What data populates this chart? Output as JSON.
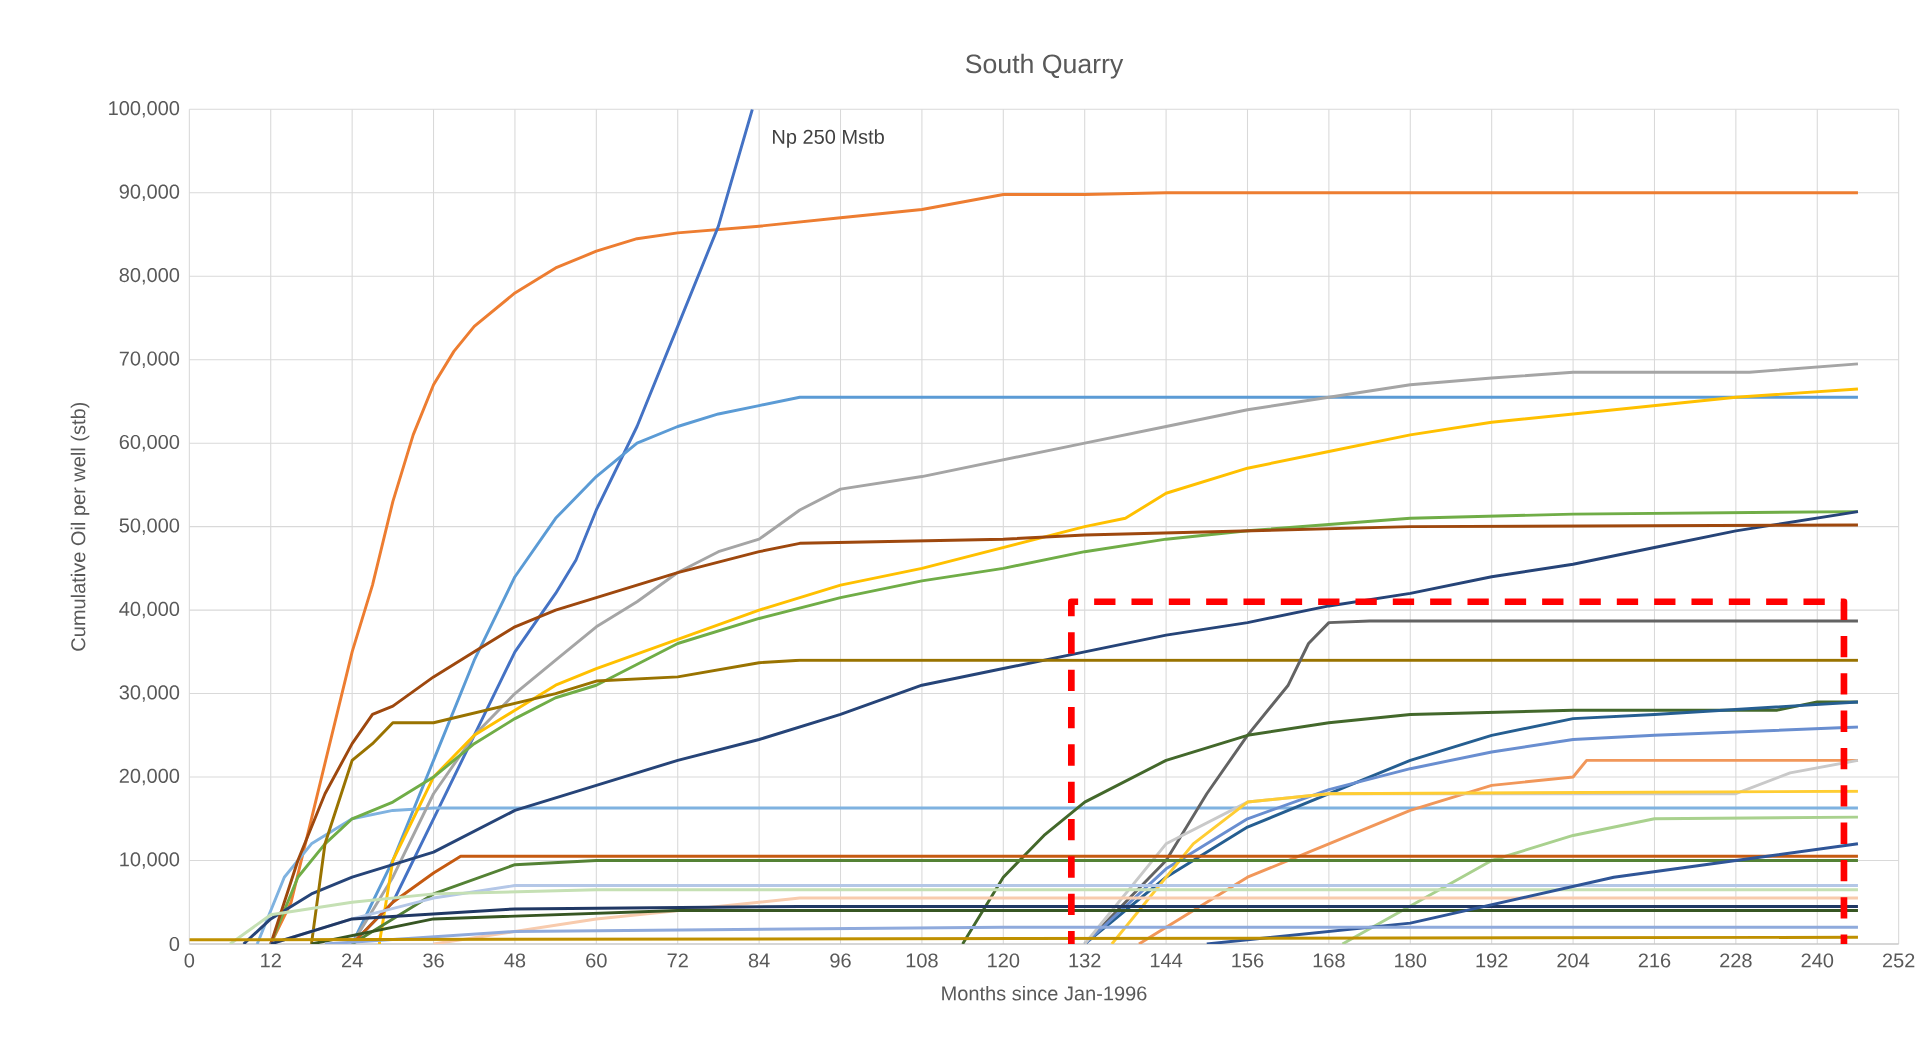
{
  "chart_data": {
    "type": "line",
    "title": "South Quarry",
    "xlabel": "Months since Jan-1996",
    "ylabel": "Cumulative Oil per well (stb)",
    "xlim": [
      0,
      252
    ],
    "ylim": [
      0,
      100000
    ],
    "xticks": [
      0,
      12,
      24,
      36,
      48,
      60,
      72,
      84,
      96,
      108,
      120,
      132,
      144,
      156,
      168,
      180,
      192,
      204,
      216,
      228,
      240,
      252
    ],
    "yticks": [
      {
        "value": 0,
        "label": "0"
      },
      {
        "value": 10000,
        "label": "10,000"
      },
      {
        "value": 20000,
        "label": "20,000"
      },
      {
        "value": 30000,
        "label": "30,000"
      },
      {
        "value": 40000,
        "label": "40,000"
      },
      {
        "value": 50000,
        "label": "50,000"
      },
      {
        "value": 60000,
        "label": "60,000"
      },
      {
        "value": 70000,
        "label": "70,000"
      },
      {
        "value": 80000,
        "label": "80,000"
      },
      {
        "value": 90000,
        "label": "90,000"
      },
      {
        "value": 100000,
        "label": "100,000"
      }
    ],
    "grid": true,
    "legend": false,
    "marker": "none",
    "line_style": "solid",
    "annotations": [
      "Np 250 Mstb"
    ],
    "series": [
      {
        "color": "#ed7d31",
        "x": [
          12,
          15,
          18,
          21,
          24,
          27,
          30,
          33,
          36,
          39,
          42,
          48,
          54,
          60,
          66,
          72,
          84,
          96,
          108,
          120,
          132,
          144,
          246
        ],
        "values": [
          0,
          5000,
          15000,
          25000,
          35000,
          43000,
          53000,
          61000,
          67000,
          71000,
          74000,
          78000,
          81000,
          83000,
          84500,
          85200,
          86000,
          87000,
          88000,
          89800,
          89800,
          90000,
          90000
        ]
      },
      {
        "color": "#4472c4",
        "x": [
          24,
          30,
          36,
          42,
          48,
          54,
          57,
          60,
          66,
          72,
          78,
          83
        ],
        "values": [
          0,
          5000,
          15000,
          25000,
          35000,
          42000,
          46000,
          52000,
          62000,
          74000,
          86000,
          100000
        ]
      },
      {
        "color": "#5b9bd5",
        "x": [
          24,
          30,
          36,
          42,
          48,
          54,
          60,
          66,
          72,
          78,
          84,
          90,
          246
        ],
        "values": [
          0,
          10000,
          22000,
          34000,
          44000,
          51000,
          56000,
          60000,
          62000,
          63500,
          64500,
          65500,
          65500
        ]
      },
      {
        "color": "#7fb2e0",
        "x": [
          10,
          14,
          18,
          24,
          30,
          36,
          246
        ],
        "values": [
          0,
          8000,
          12000,
          15000,
          16000,
          16300,
          16300
        ]
      },
      {
        "color": "#a5a5a5",
        "x": [
          24,
          30,
          36,
          42,
          48,
          54,
          60,
          66,
          72,
          78,
          84,
          90,
          96,
          108,
          120,
          132,
          144,
          156,
          168,
          180,
          192,
          204,
          230,
          246
        ],
        "values": [
          0,
          8000,
          18000,
          25000,
          30000,
          34000,
          38000,
          41000,
          44500,
          47000,
          48500,
          52000,
          54500,
          56000,
          58000,
          60000,
          62000,
          64000,
          65500,
          67000,
          67800,
          68500,
          68500,
          69500
        ]
      },
      {
        "color": "#ffc000",
        "x": [
          28,
          30,
          36,
          42,
          48,
          54,
          60,
          72,
          84,
          96,
          108,
          120,
          132,
          138,
          144,
          156,
          168,
          180,
          192,
          204,
          216,
          228,
          246
        ],
        "values": [
          0,
          10000,
          20000,
          25000,
          28000,
          31000,
          33000,
          36500,
          40000,
          43000,
          45000,
          47500,
          50000,
          51000,
          54000,
          57000,
          59000,
          61000,
          62500,
          63500,
          64500,
          65500,
          66500
        ]
      },
      {
        "color": "#70ad47",
        "x": [
          12,
          16,
          20,
          24,
          30,
          36,
          42,
          48,
          54,
          60,
          72,
          84,
          96,
          108,
          120,
          132,
          144,
          156,
          180,
          204,
          246
        ],
        "values": [
          0,
          8000,
          12000,
          15000,
          17000,
          20000,
          24000,
          27000,
          29500,
          31000,
          36000,
          39000,
          41500,
          43500,
          45000,
          47000,
          48500,
          49500,
          51000,
          51500,
          51800
        ]
      },
      {
        "color": "#264478",
        "x": [
          8,
          12,
          18,
          24,
          36,
          48,
          60,
          72,
          84,
          96,
          108,
          120,
          132,
          144,
          156,
          168,
          180,
          192,
          204,
          216,
          228,
          246
        ],
        "values": [
          0,
          3000,
          6000,
          8000,
          11000,
          16000,
          19000,
          22000,
          24500,
          27500,
          31000,
          33000,
          35000,
          37000,
          38500,
          40500,
          42000,
          44000,
          45500,
          47500,
          49500,
          51800
        ]
      },
      {
        "color": "#9e480e",
        "x": [
          12,
          16,
          20,
          24,
          27,
          30,
          36,
          42,
          48,
          54,
          60,
          72,
          84,
          90,
          120,
          132,
          180,
          246
        ],
        "values": [
          0,
          10000,
          18000,
          24000,
          27500,
          28500,
          32000,
          35000,
          38000,
          40000,
          41500,
          44500,
          47000,
          48000,
          48500,
          49000,
          50000,
          50200
        ]
      },
      {
        "color": "#997300",
        "x": [
          18,
          20,
          24,
          27,
          30,
          36,
          54,
          60,
          72,
          84,
          90,
          246
        ],
        "values": [
          0,
          12000,
          22000,
          24000,
          26500,
          26500,
          30000,
          31500,
          32000,
          33700,
          34000,
          34000
        ]
      },
      {
        "color": "#636363",
        "x": [
          132,
          144,
          150,
          156,
          162,
          165,
          168,
          174,
          246
        ],
        "values": [
          0,
          10000,
          18000,
          25000,
          31000,
          36000,
          38500,
          38700,
          38700
        ]
      },
      {
        "color": "#43682b",
        "x": [
          114,
          120,
          126,
          132,
          144,
          156,
          168,
          180,
          204,
          234,
          240,
          246
        ],
        "values": [
          0,
          8000,
          13000,
          17000,
          22000,
          25000,
          26500,
          27500,
          28000,
          28000,
          29000,
          29000
        ]
      },
      {
        "color": "#255e91",
        "x": [
          132,
          144,
          156,
          168,
          180,
          192,
          204,
          216,
          246
        ],
        "values": [
          0,
          8000,
          14000,
          18000,
          22000,
          25000,
          27000,
          27500,
          29000
        ]
      },
      {
        "color": "#698ed0",
        "x": [
          132,
          144,
          156,
          168,
          180,
          192,
          204,
          216,
          246
        ],
        "values": [
          0,
          9000,
          15000,
          18500,
          21000,
          23000,
          24500,
          25000,
          26000
        ]
      },
      {
        "color": "#f1975a",
        "x": [
          140,
          156,
          168,
          180,
          192,
          204,
          206,
          246
        ],
        "values": [
          0,
          8000,
          12000,
          16000,
          19000,
          20000,
          22000,
          22000
        ]
      },
      {
        "color": "#c9c9c9",
        "x": [
          132,
          144,
          156,
          168,
          228,
          236,
          246
        ],
        "values": [
          0,
          12000,
          17000,
          18000,
          18000,
          20500,
          22000
        ]
      },
      {
        "color": "#ffcd33",
        "x": [
          136,
          148,
          156,
          168,
          246
        ],
        "values": [
          0,
          12000,
          17000,
          18000,
          18300
        ]
      },
      {
        "color": "#a9d18e",
        "x": [
          170,
          192,
          204,
          216,
          246
        ],
        "values": [
          0,
          10000,
          13000,
          15000,
          15200
        ]
      },
      {
        "color": "#c55a11",
        "x": [
          24,
          30,
          36,
          40,
          246
        ],
        "values": [
          0,
          5000,
          8500,
          10500,
          10500
        ]
      },
      {
        "color": "#548235",
        "x": [
          24,
          36,
          48,
          60,
          246
        ],
        "values": [
          0,
          6000,
          9500,
          10000,
          10000
        ]
      },
      {
        "color": "#b4c7e7",
        "x": [
          12,
          24,
          36,
          48,
          246
        ],
        "values": [
          0,
          3000,
          5500,
          7000,
          7000
        ]
      },
      {
        "color": "#c5e0b4",
        "x": [
          6,
          12,
          24,
          36,
          60,
          246
        ],
        "values": [
          0,
          3500,
          5000,
          6000,
          6500,
          6500
        ]
      },
      {
        "color": "#f8cbad",
        "x": [
          36,
          60,
          90,
          246
        ],
        "values": [
          0,
          3000,
          5500,
          5500
        ]
      },
      {
        "color": "#375623",
        "x": [
          18,
          36,
          72,
          246
        ],
        "values": [
          0,
          3000,
          4000,
          4000
        ]
      },
      {
        "color": "#203864",
        "x": [
          12,
          24,
          48,
          90,
          246
        ],
        "values": [
          0,
          3000,
          4200,
          4500,
          4500
        ]
      },
      {
        "color": "#2f5597",
        "x": [
          150,
          180,
          210,
          228,
          246
        ],
        "values": [
          0,
          2500,
          8000,
          10000,
          12000
        ]
      },
      {
        "color": "#8faadc",
        "x": [
          20,
          48,
          120,
          246
        ],
        "values": [
          0,
          1500,
          2000,
          2000
        ]
      },
      {
        "color": "#bf9000",
        "x": [
          0,
          246
        ],
        "values": [
          500,
          800
        ]
      }
    ]
  }
}
